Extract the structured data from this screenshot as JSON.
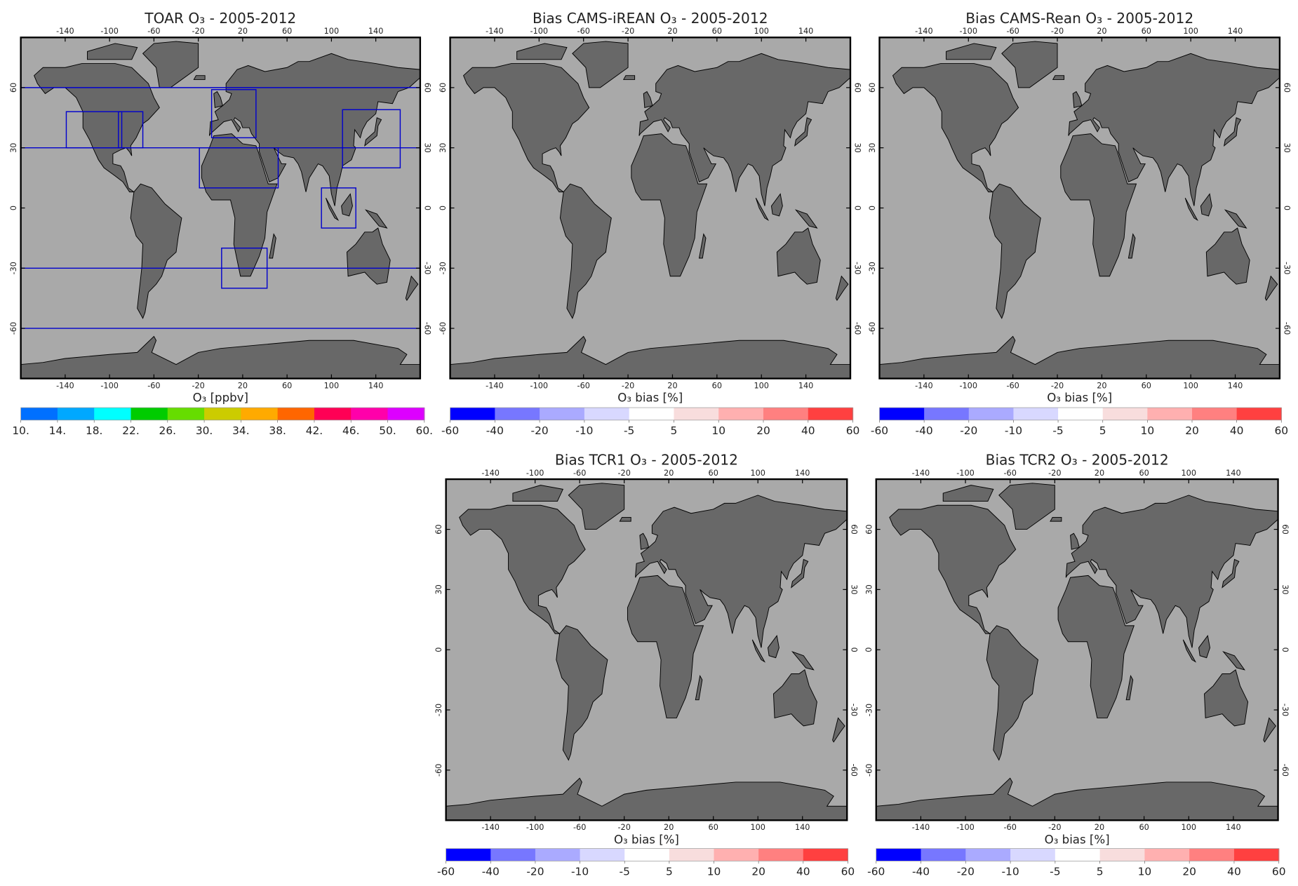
{
  "axes": {
    "xlim": [
      -180,
      180
    ],
    "ylim": [
      -85,
      85
    ],
    "xticks": [
      -140,
      -100,
      -60,
      -20,
      20,
      60,
      100,
      140
    ],
    "yticks": [
      60,
      30,
      0,
      -30,
      -60
    ]
  },
  "panels": [
    {
      "title": "TOAR O₃ - 2005-2012",
      "xlabel": "O₃ [ppbv]",
      "colorbar": {
        "colors": [
          "#0070ff",
          "#00a8ff",
          "#00ffff",
          "#00cc00",
          "#66dd00",
          "#cccc00",
          "#ffaa00",
          "#ff6600",
          "#ff0055",
          "#ff00aa",
          "#dd00ff"
        ],
        "labels": [
          {
            "value": 10,
            "label": "10."
          },
          {
            "value": 14,
            "label": "14."
          },
          {
            "value": 18,
            "label": "18."
          },
          {
            "value": 22,
            "label": "22."
          },
          {
            "value": 26,
            "label": "26."
          },
          {
            "value": 30,
            "label": "30."
          },
          {
            "value": 34,
            "label": "34."
          },
          {
            "value": 38,
            "label": "38."
          },
          {
            "value": 42,
            "label": "42."
          },
          {
            "value": 46,
            "label": "46."
          },
          {
            "value": 50,
            "label": "50."
          },
          {
            "value": 60,
            "label": "60."
          }
        ]
      }
    },
    {
      "title": "Bias CAMS-iREAN O₃ - 2005-2012",
      "xlabel": "O₃ bias [%]",
      "colorbar": {
        "colors": [
          "#0000ff",
          "#7777ff",
          "#aaaaff",
          "#d8d8ff",
          "#ffffff",
          "#f8dddd",
          "#ffb0b0",
          "#ff8080",
          "#ff4040"
        ],
        "labels": [
          -60,
          -40,
          -20,
          -10,
          -5,
          5,
          10,
          20,
          40,
          60
        ]
      }
    },
    {
      "title": "Bias CAMS-Rean O₃ - 2005-2012",
      "xlabel": "O₃ bias [%]",
      "colorbar": {
        "colors": [
          "#0000ff",
          "#7777ff",
          "#aaaaff",
          "#d8d8ff",
          "#ffffff",
          "#f8dddd",
          "#ffb0b0",
          "#ff8080",
          "#ff4040"
        ],
        "labels": [
          -60,
          -40,
          -20,
          -10,
          -5,
          5,
          10,
          20,
          40,
          60
        ]
      }
    },
    {
      "title": "Bias TCR1 O₃ - 2005-2012",
      "xlabel": "O₃ bias [%]",
      "colorbar": {
        "colors": [
          "#0000ff",
          "#7777ff",
          "#aaaaff",
          "#d8d8ff",
          "#ffffff",
          "#f8dddd",
          "#ffb0b0",
          "#ff8080",
          "#ff4040"
        ],
        "labels": [
          -60,
          -40,
          -20,
          -10,
          -5,
          5,
          10,
          20,
          40,
          60
        ]
      }
    },
    {
      "title": "Bias TCR2 O₃ - 2005-2012",
      "xlabel": "O₃ bias [%]",
      "colorbar": {
        "colors": [
          "#0000ff",
          "#7777ff",
          "#aaaaff",
          "#d8d8ff",
          "#ffffff",
          "#f8dddd",
          "#ffb0b0",
          "#ff8080",
          "#ff4040"
        ],
        "labels": [
          -60,
          -40,
          -20,
          -10,
          -5,
          5,
          10,
          20,
          40,
          60
        ]
      }
    }
  ]
}
